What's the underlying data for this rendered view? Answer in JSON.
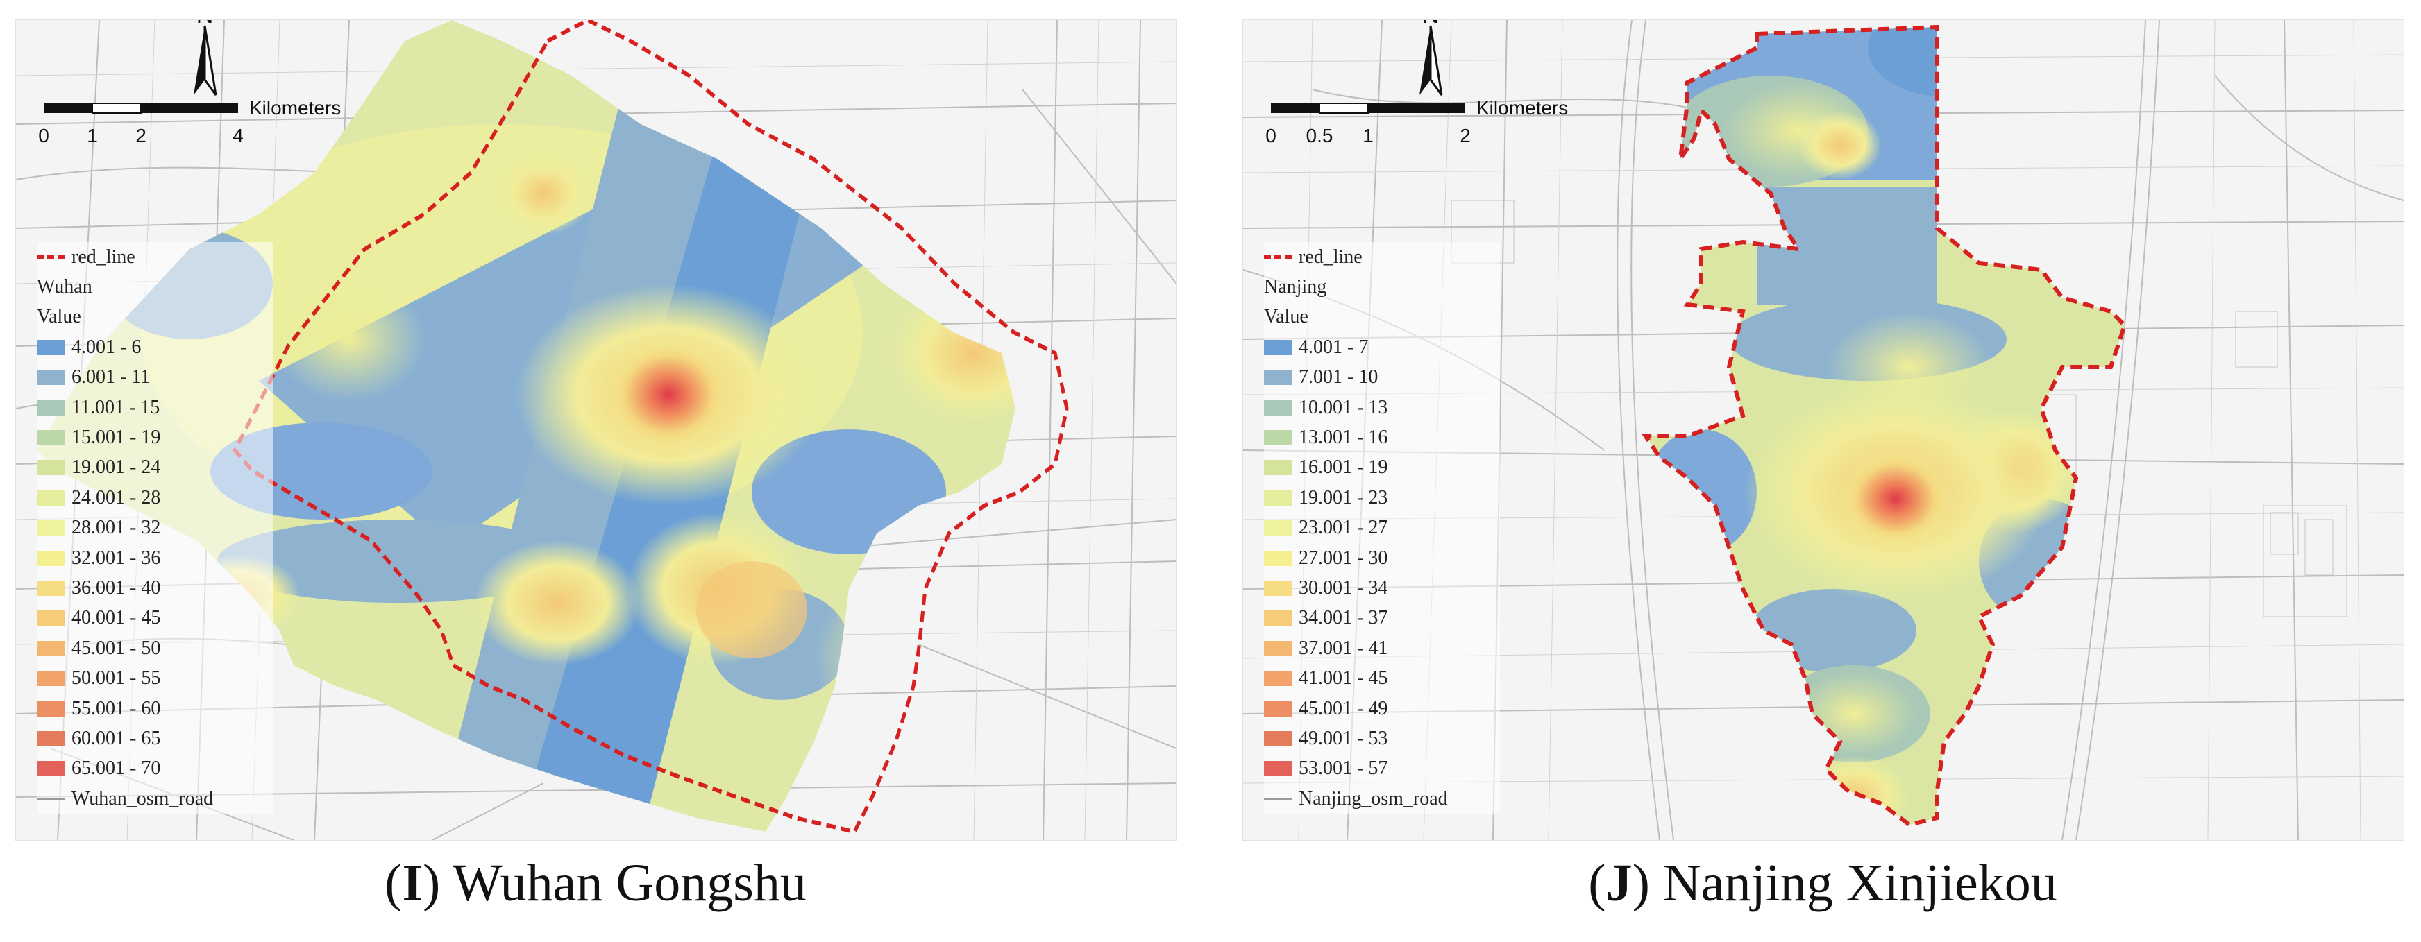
{
  "panels": [
    {
      "id": "I",
      "caption": {
        "letter": "I",
        "name": "Wuhan Gongshu"
      },
      "scale": {
        "unit": "Kilometers",
        "ticks": [
          "0",
          "1",
          "2",
          "4"
        ]
      },
      "north": "N",
      "legend": {
        "boundary": "red_line",
        "layer": "Wuhan",
        "field": "Value",
        "classes": [
          {
            "label": "4.001 - 6",
            "color": "#6b9fd6"
          },
          {
            "label": "6.001 - 11",
            "color": "#8fb3cf"
          },
          {
            "label": "11.001 - 15",
            "color": "#a9c8b8"
          },
          {
            "label": "15.001 - 19",
            "color": "#bcd8a6"
          },
          {
            "label": "19.001 - 24",
            "color": "#d5e49d"
          },
          {
            "label": "24.001 - 28",
            "color": "#e5ec9c"
          },
          {
            "label": "28.001 - 32",
            "color": "#eef29c"
          },
          {
            "label": "32.001 - 36",
            "color": "#f4ef8f"
          },
          {
            "label": "36.001 - 40",
            "color": "#f6dd83"
          },
          {
            "label": "40.001 - 45",
            "color": "#f6cc7b"
          },
          {
            "label": "45.001 - 50",
            "color": "#f4b772"
          },
          {
            "label": "50.001 - 55",
            "color": "#f1a36a"
          },
          {
            "label": "55.001 - 60",
            "color": "#ec8f63"
          },
          {
            "label": "60.001 - 65",
            "color": "#e57b5d"
          },
          {
            "label": "65.001 - 70",
            "color": "#e2625a"
          }
        ],
        "roads": "Wuhan_osm_road"
      }
    },
    {
      "id": "J",
      "caption": {
        "letter": "J",
        "name": "Nanjing Xinjiekou"
      },
      "scale": {
        "unit": "Kilometers",
        "ticks": [
          "0",
          "0.5",
          "1",
          "2"
        ]
      },
      "north": "N",
      "legend": {
        "boundary": "red_line",
        "layer": "Nanjing",
        "field": "Value",
        "classes": [
          {
            "label": "4.001 - 7",
            "color": "#6b9fd6"
          },
          {
            "label": "7.001 - 10",
            "color": "#8fb3cf"
          },
          {
            "label": "10.001 - 13",
            "color": "#a9c8b8"
          },
          {
            "label": "13.001 - 16",
            "color": "#bcd8a6"
          },
          {
            "label": "16.001 - 19",
            "color": "#d5e49d"
          },
          {
            "label": "19.001 - 23",
            "color": "#e5ec9c"
          },
          {
            "label": "23.001 - 27",
            "color": "#eef29c"
          },
          {
            "label": "27.001 - 30",
            "color": "#f4ef8f"
          },
          {
            "label": "30.001 - 34",
            "color": "#f6dd83"
          },
          {
            "label": "34.001 - 37",
            "color": "#f6cc7b"
          },
          {
            "label": "37.001 - 41",
            "color": "#f4b772"
          },
          {
            "label": "41.001 - 45",
            "color": "#f1a36a"
          },
          {
            "label": "45.001 - 49",
            "color": "#ec8f63"
          },
          {
            "label": "49.001 - 53",
            "color": "#e57b5d"
          },
          {
            "label": "53.001 - 57",
            "color": "#e2625a"
          }
        ],
        "roads": "Nanjing_osm_road"
      }
    }
  ]
}
